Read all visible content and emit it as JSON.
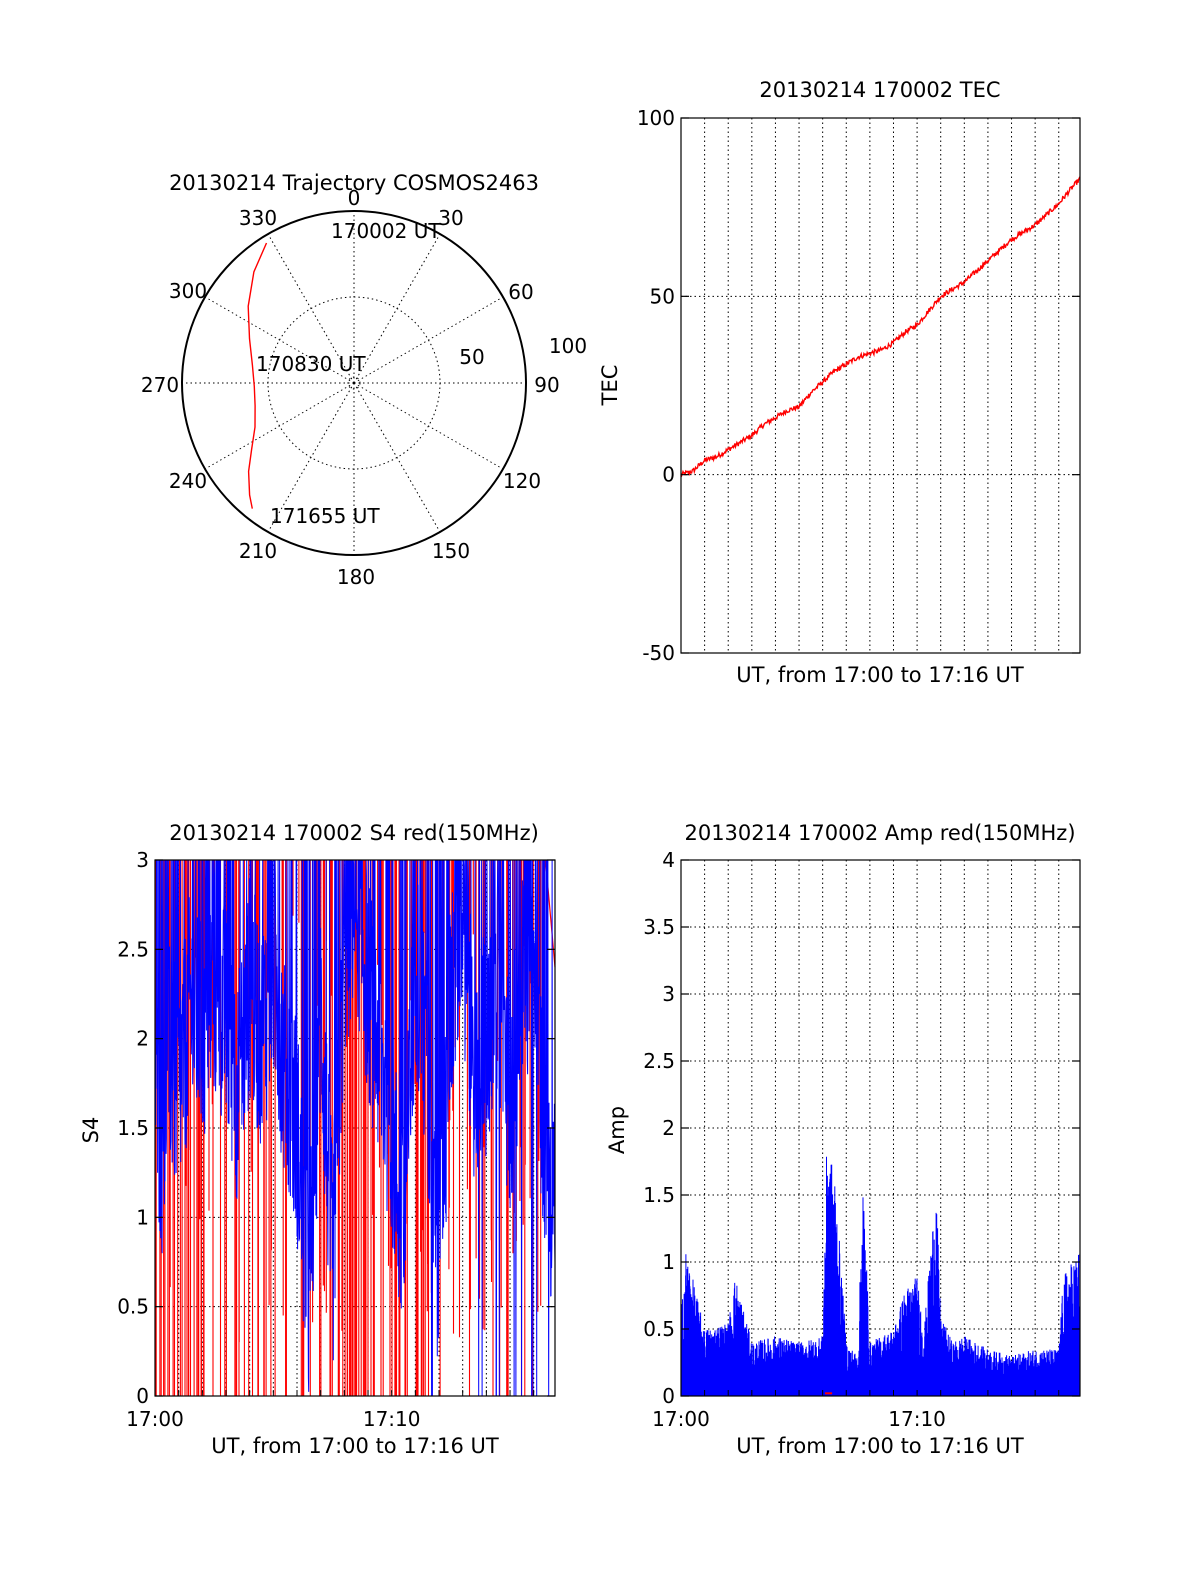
{
  "colors": {
    "red": "#ff0000",
    "blue": "#0000ff",
    "axis": "#000000"
  },
  "chart_data": [
    {
      "id": "trajectory",
      "type": "polar",
      "title": "20130214 Trajectory COSMOS2463",
      "azimuth_labels": [
        "0",
        "30",
        "60",
        "90",
        "120",
        "150",
        "180",
        "210",
        "240",
        "270",
        "300",
        "330"
      ],
      "ring_labels": [
        "50",
        "100"
      ],
      "rlim": [
        0,
        100
      ],
      "grid": true,
      "series": [
        {
          "color": "red",
          "az": [
            328,
            318,
            306,
            293,
            280,
            268,
            257,
            246,
            237,
            230,
            223,
            219
          ],
          "r": [
            96,
            87,
            76,
            66,
            60,
            58,
            59,
            63,
            71,
            80,
            89,
            94
          ]
        }
      ],
      "annotations": [
        {
          "text": "170002 UT",
          "az": 328,
          "r": 96
        },
        {
          "text": "170830 UT",
          "az": 268,
          "r": 58
        },
        {
          "text": "171655 UT",
          "az": 219,
          "r": 94
        }
      ]
    },
    {
      "id": "tec",
      "type": "line",
      "title": "20130214 170002 TEC",
      "xlabel": "UT, from 17:00 to 17:16 UT",
      "ylabel": "TEC",
      "xlim": [
        0,
        16.9
      ],
      "ylim": [
        -50,
        100
      ],
      "yticks": [
        -50,
        0,
        50,
        100
      ],
      "grid": true,
      "series": [
        {
          "color": "red",
          "x": [
            0,
            0.5,
            1,
            1.5,
            2,
            2.5,
            3,
            3.5,
            4,
            4.5,
            5,
            5.5,
            6,
            6.5,
            7,
            7.5,
            8,
            8.5,
            9,
            9.5,
            10,
            10.5,
            11,
            11.5,
            12,
            12.5,
            13,
            13.5,
            14,
            14.5,
            15,
            15.5,
            16,
            16.5,
            16.9
          ],
          "y": [
            0,
            1,
            4,
            5,
            7,
            9,
            11,
            14,
            16,
            18,
            19,
            23,
            26,
            29,
            31,
            33,
            34,
            35,
            37,
            40,
            42,
            46,
            50,
            52,
            54,
            57,
            60,
            63,
            66,
            68,
            70,
            73,
            76,
            80,
            83
          ]
        }
      ]
    },
    {
      "id": "s4",
      "type": "line",
      "title": "20130214 170002 S4 red(150MHz)",
      "xlabel": "UT, from 17:00 to 17:16 UT",
      "ylabel": "S4",
      "xlim": [
        0,
        16.9
      ],
      "ylim": [
        0,
        3
      ],
      "yticks": [
        0,
        0.5,
        1,
        1.5,
        2,
        2.5,
        3
      ],
      "ytick_labels": [
        "0",
        "0.5",
        "1",
        "1.5",
        "2",
        "2.5",
        "3"
      ],
      "xticks": [
        0,
        10
      ],
      "xtick_labels": [
        "17:00",
        "17:10"
      ],
      "grid": true,
      "series": [
        {
          "color": "red",
          "description": "spiky",
          "x": [
            0,
            16.9
          ],
          "y": [
            3,
            2.4
          ]
        },
        {
          "color": "blue",
          "x": [
            0,
            0.3,
            0.6,
            1,
            1.5,
            2,
            2.5,
            3,
            3.5,
            4,
            4.5,
            5,
            5.5,
            6,
            6.5,
            7,
            7.5,
            8,
            8.5,
            9,
            9.5,
            10,
            10.5,
            11,
            11.5,
            12,
            12.5,
            13,
            13.5,
            14,
            14.5,
            15,
            15.5,
            16,
            16.5,
            16.9
          ],
          "y": [
            1.8,
            1.4,
            1.9,
            1.7,
            2.2,
            2.0,
            2.3,
            2.1,
            1.7,
            2.3,
            2.0,
            2.4,
            1.8,
            1.5,
            0.5,
            2.2,
            0.7,
            2.5,
            2.8,
            2.3,
            1.9,
            1.5,
            0.8,
            2.5,
            1.8,
            0.6,
            2.2,
            2.6,
            1.8,
            2.0,
            2.4,
            1.6,
            2.3,
            2.6,
            1.2,
            1.0
          ]
        }
      ]
    },
    {
      "id": "amp",
      "type": "line",
      "title": "20130214 170002 Amp red(150MHz)",
      "xlabel": "UT, from 17:00 to 17:16 UT",
      "ylabel": "Amp",
      "xlim": [
        0,
        16.9
      ],
      "ylim": [
        0,
        4
      ],
      "yticks": [
        0,
        0.5,
        1,
        1.5,
        2,
        2.5,
        3,
        3.5,
        4
      ],
      "ytick_labels": [
        "0",
        "0.5",
        "1",
        "1.5",
        "2",
        "2.5",
        "3",
        "3.5",
        "4"
      ],
      "xticks": [
        0,
        10
      ],
      "xtick_labels": [
        "17:00",
        "17:10"
      ],
      "grid": true,
      "series": [
        {
          "color": "blue",
          "x": [
            0,
            0.2,
            1,
            2,
            2.3,
            3,
            4,
            5,
            6,
            6.2,
            6.3,
            6.5,
            7,
            7.5,
            7.7,
            8,
            9,
            9.5,
            10,
            10.3,
            10.8,
            11,
            11.5,
            12,
            13,
            14,
            15,
            16,
            16.2,
            16.9
          ],
          "y": [
            0.6,
            1.1,
            0.5,
            0.55,
            0.9,
            0.4,
            0.45,
            0.4,
            0.45,
            2.1,
            1.8,
            1.7,
            0.4,
            0.3,
            1.7,
            0.4,
            0.5,
            0.8,
            0.9,
            0.5,
            1.6,
            0.6,
            0.4,
            0.45,
            0.35,
            0.3,
            0.35,
            0.35,
            0.9,
            1.1
          ]
        }
      ]
    }
  ]
}
